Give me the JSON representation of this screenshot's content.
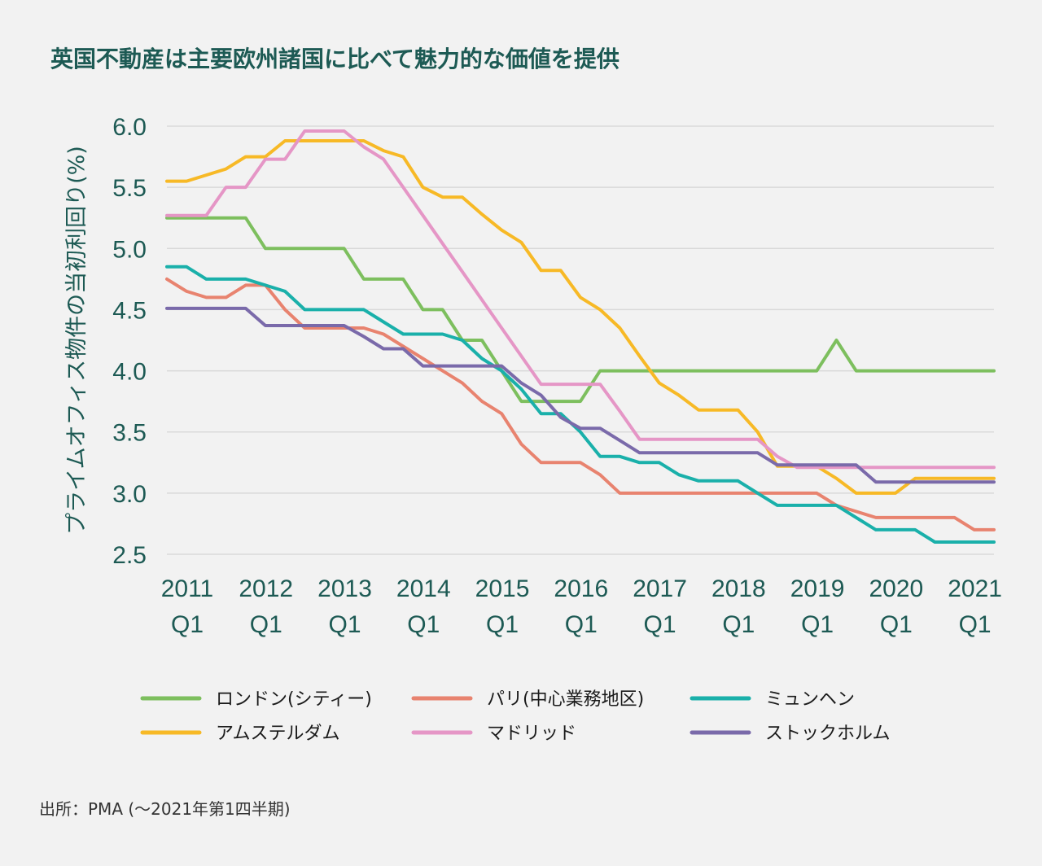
{
  "chart_data": {
    "type": "line",
    "title": "英国不動産は主要欧州諸国に比べて魅力的な価値を提供",
    "ylabel": "プライムオフィス物件の当初利回り(%)",
    "ylim": [
      2.5,
      6.0
    ],
    "yticks": [
      "6.0",
      "5.5",
      "5.0",
      "4.5",
      "4.0",
      "3.5",
      "3.0",
      "2.5"
    ],
    "xticks": [
      {
        "year": "2011",
        "q": "Q1"
      },
      {
        "year": "2012",
        "q": "Q1"
      },
      {
        "year": "2013",
        "q": "Q1"
      },
      {
        "year": "2014",
        "q": "Q1"
      },
      {
        "year": "2015",
        "q": "Q1"
      },
      {
        "year": "2016",
        "q": "Q1"
      },
      {
        "year": "2017",
        "q": "Q1"
      },
      {
        "year": "2018",
        "q": "Q1"
      },
      {
        "year": "2019",
        "q": "Q1"
      },
      {
        "year": "2020",
        "q": "Q1"
      },
      {
        "year": "2021",
        "q": "Q1"
      }
    ],
    "grid": true,
    "legend_position": "bottom",
    "x_start": "2011 Q1",
    "x_end": "2021 Q4",
    "series": [
      {
        "name": "ロンドン(シティー)",
        "color": "#7dbf5e",
        "values": [
          5.25,
          5.25,
          5.25,
          5.25,
          5.25,
          5.0,
          5.0,
          5.0,
          5.0,
          5.0,
          4.75,
          4.75,
          4.75,
          4.5,
          4.5,
          4.25,
          4.25,
          4.0,
          3.75,
          3.75,
          3.75,
          3.75,
          4.0,
          4.0,
          4.0,
          4.0,
          4.0,
          4.0,
          4.0,
          4.0,
          4.0,
          4.0,
          4.0,
          4.0,
          4.25,
          4.0,
          4.0,
          4.0,
          4.0,
          4.0,
          4.0,
          4.0,
          4.0
        ]
      },
      {
        "name": "パリ(中心業務地区)",
        "color": "#e8836f",
        "values": [
          4.75,
          4.65,
          4.6,
          4.6,
          4.7,
          4.7,
          4.5,
          4.35,
          4.35,
          4.35,
          4.35,
          4.3,
          4.2,
          4.1,
          4.0,
          3.9,
          3.75,
          3.65,
          3.4,
          3.25,
          3.25,
          3.25,
          3.15,
          3.0,
          3.0,
          3.0,
          3.0,
          3.0,
          3.0,
          3.0,
          3.0,
          3.0,
          3.0,
          3.0,
          2.9,
          2.85,
          2.8,
          2.8,
          2.8,
          2.8,
          2.8,
          2.7,
          2.7
        ]
      },
      {
        "name": "ミュンヘン",
        "color": "#1ab0aa",
        "values": [
          4.85,
          4.85,
          4.75,
          4.75,
          4.75,
          4.7,
          4.65,
          4.5,
          4.5,
          4.5,
          4.5,
          4.4,
          4.3,
          4.3,
          4.3,
          4.25,
          4.1,
          4.0,
          3.85,
          3.65,
          3.65,
          3.5,
          3.3,
          3.3,
          3.25,
          3.25,
          3.15,
          3.1,
          3.1,
          3.1,
          3.0,
          2.9,
          2.9,
          2.9,
          2.9,
          2.8,
          2.7,
          2.7,
          2.7,
          2.6,
          2.6,
          2.6,
          2.6
        ]
      },
      {
        "name": "アムステルダム",
        "color": "#f7b926",
        "values": [
          5.55,
          5.55,
          5.6,
          5.65,
          5.75,
          5.75,
          5.88,
          5.88,
          5.88,
          5.88,
          5.88,
          5.8,
          5.75,
          5.5,
          5.42,
          5.42,
          5.28,
          5.15,
          5.05,
          4.82,
          4.82,
          4.6,
          4.5,
          4.35,
          4.12,
          3.9,
          3.8,
          3.68,
          3.68,
          3.68,
          3.5,
          3.22,
          3.22,
          3.22,
          3.12,
          3.0,
          3.0,
          3.0,
          3.12,
          3.12,
          3.12,
          3.12,
          3.12
        ]
      },
      {
        "name": "マドリッド",
        "color": "#e596c6",
        "values": [
          5.27,
          5.27,
          5.27,
          5.5,
          5.5,
          5.73,
          5.73,
          5.96,
          5.96,
          5.96,
          5.83,
          5.73,
          5.5,
          5.27,
          5.04,
          4.81,
          4.58,
          4.35,
          4.12,
          3.89,
          3.89,
          3.89,
          3.89,
          3.67,
          3.44,
          3.44,
          3.44,
          3.44,
          3.44,
          3.44,
          3.44,
          3.3,
          3.21,
          3.21,
          3.21,
          3.21,
          3.21,
          3.21,
          3.21,
          3.21,
          3.21,
          3.21,
          3.21
        ]
      },
      {
        "name": "ストックホルム",
        "color": "#7a6aaa",
        "values": [
          4.51,
          4.51,
          4.51,
          4.51,
          4.51,
          4.37,
          4.37,
          4.37,
          4.37,
          4.37,
          4.28,
          4.18,
          4.18,
          4.04,
          4.04,
          4.04,
          4.04,
          4.04,
          3.9,
          3.8,
          3.62,
          3.53,
          3.53,
          3.43,
          3.33,
          3.33,
          3.33,
          3.33,
          3.33,
          3.33,
          3.33,
          3.23,
          3.23,
          3.23,
          3.23,
          3.23,
          3.09,
          3.09,
          3.09,
          3.09,
          3.09,
          3.09,
          3.09
        ]
      }
    ]
  },
  "source": "出所：PMA (〜2021年第1四半期)"
}
